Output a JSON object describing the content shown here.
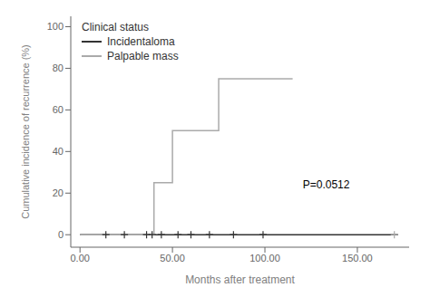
{
  "chart_data": {
    "type": "line",
    "title": "",
    "xlabel": "Months after treatment",
    "ylabel": "Cumulative incidence of recurrence (%)",
    "xlim": [
      -5,
      178
    ],
    "ylim": [
      -6,
      105
    ],
    "xticks": [
      {
        "value": 0.0,
        "label": "0.00"
      },
      {
        "value": 50.0,
        "label": "50.00"
      },
      {
        "value": 100.0,
        "label": "100.00"
      },
      {
        "value": 150.0,
        "label": "150.00"
      }
    ],
    "yticks": [
      0,
      20,
      40,
      60,
      80,
      100
    ],
    "legend": "upper left",
    "legend_title": "Clinical status",
    "series": [
      {
        "name": "Incidentaloma",
        "color": "#333333",
        "type": "line",
        "marker": "plus",
        "x": [
          0,
          172
        ],
        "values": [
          0,
          0
        ],
        "censor_x": [
          14,
          24,
          36,
          39,
          44,
          53,
          60,
          70,
          83,
          99
        ],
        "censor_y": [
          0,
          0,
          0,
          0,
          0,
          0,
          0,
          0,
          0,
          0
        ]
      },
      {
        "name": "Palpable mass",
        "color": "#aaaaaa",
        "type": "step",
        "marker": "plus",
        "x": [
          0,
          40,
          40,
          50,
          50,
          75,
          75,
          115
        ],
        "values": [
          0,
          0,
          25,
          25,
          50,
          50,
          75,
          75
        ],
        "censor_x": [
          170
        ],
        "censor_y": [
          0
        ]
      }
    ],
    "annotations": [
      {
        "text": "P=0.0512",
        "x": 118,
        "y": 24
      }
    ]
  }
}
